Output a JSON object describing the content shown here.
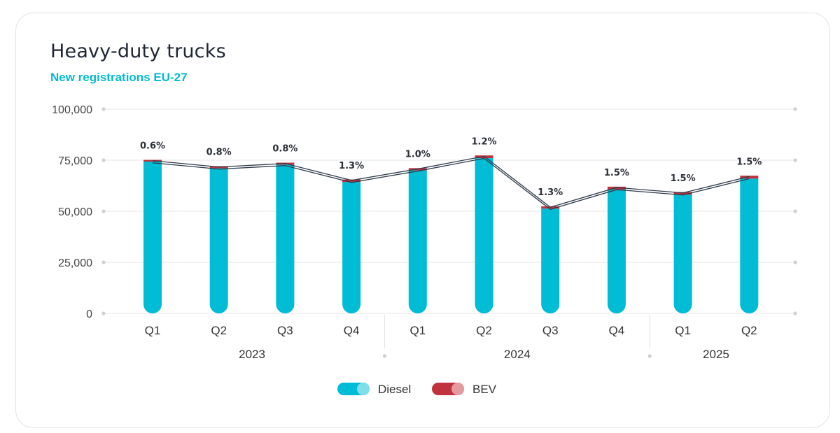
{
  "title": "Heavy-duty trucks",
  "subtitle": "New registrations EU-27",
  "chart_data": {
    "type": "bar",
    "stacked": true,
    "categories": [
      "Q1",
      "Q2",
      "Q3",
      "Q4",
      "Q1",
      "Q2",
      "Q3",
      "Q4",
      "Q1",
      "Q2"
    ],
    "groups": [
      {
        "label": "2023",
        "size": 4
      },
      {
        "label": "2024",
        "size": 4
      },
      {
        "label": "2025",
        "size": 2
      }
    ],
    "series": [
      {
        "name": "Diesel",
        "color": "#00bcd4",
        "values": [
          74300,
          71100,
          72800,
          64300,
          70000,
          76000,
          51300,
          60700,
          58100,
          66000
        ]
      },
      {
        "name": "BEV",
        "color": "#c0323e",
        "values": [
          450,
          570,
          580,
          840,
          700,
          920,
          670,
          920,
          880,
          1000
        ]
      }
    ],
    "data_labels": [
      "0.6%",
      "0.8%",
      "0.8%",
      "1.3%",
      "1.0%",
      "1.2%",
      "1.3%",
      "1.5%",
      "1.5%",
      "1.5%"
    ],
    "yticks": [
      "0",
      "25,000",
      "50,000",
      "75,000",
      "100,000"
    ],
    "ytick_values": [
      0,
      25000,
      50000,
      75000,
      100000
    ],
    "ylim": [
      0,
      100000
    ],
    "grid": true,
    "legend_position": "bottom-center"
  }
}
